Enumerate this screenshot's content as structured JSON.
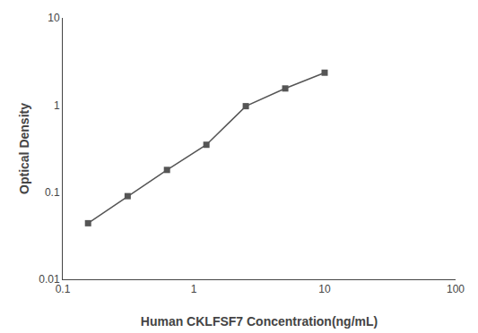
{
  "chart_data": {
    "type": "line",
    "x": [
      0.156,
      0.313,
      0.625,
      1.25,
      2.5,
      5.0,
      10.0
    ],
    "values": [
      0.044,
      0.09,
      0.18,
      0.35,
      0.97,
      1.55,
      2.35
    ],
    "xlabel": "Human CKLFSF7 Concentration(ng/mL)",
    "ylabel": "Optical Density",
    "xlim": [
      0.1,
      100
    ],
    "ylim": [
      0.01,
      10
    ],
    "xticks": [
      0.1,
      1,
      10,
      100
    ],
    "yticks": [
      0.01,
      0.1,
      1,
      10
    ],
    "log": true,
    "grid": false,
    "color": "#555555",
    "marker": "square",
    "line_style": "solid"
  }
}
